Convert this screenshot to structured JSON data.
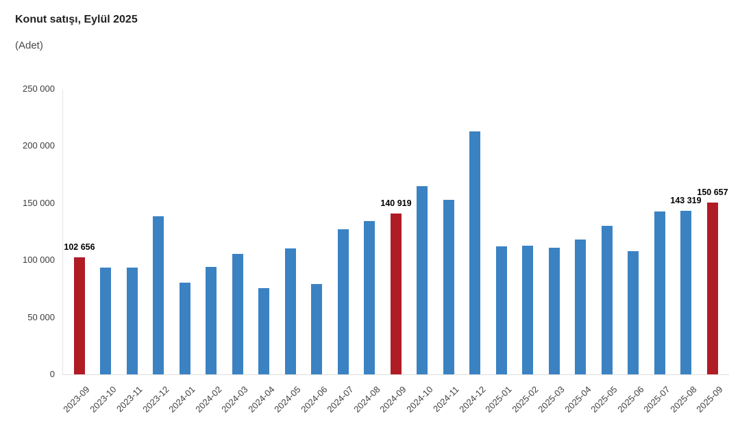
{
  "header": {
    "title": "Konut satışı, Eylül 2025",
    "subtitle": "(Adet)"
  },
  "colors": {
    "bar_default": "#3b82c3",
    "bar_highlight": "#b01c23",
    "axis_line": "#e0e0e0",
    "tick_text": "#3f3f3f",
    "title_text": "#222222",
    "data_label_text": "#000000"
  },
  "chart_data": {
    "type": "bar",
    "title": "Konut satışı, Eylül 2025",
    "subtitle": "(Adet)",
    "xlabel": "",
    "ylabel": "",
    "ylim": [
      0,
      250000
    ],
    "ytick_interval": 50000,
    "grid": false,
    "legend_position": "none",
    "yticks": [
      {
        "value": 0,
        "label": "0"
      },
      {
        "value": 50000,
        "label": "50 000"
      },
      {
        "value": 100000,
        "label": "100 000"
      },
      {
        "value": 150000,
        "label": "150 000"
      },
      {
        "value": 200000,
        "label": "200 000"
      },
      {
        "value": 250000,
        "label": "250 000"
      }
    ],
    "categories": [
      "2023-09",
      "2023-10",
      "2023-11",
      "2023-12",
      "2024-01",
      "2024-02",
      "2024-03",
      "2024-04",
      "2024-05",
      "2024-06",
      "2024-07",
      "2024-08",
      "2024-09",
      "2024-10",
      "2024-11",
      "2024-12",
      "2025-01",
      "2025-02",
      "2025-03",
      "2025-04",
      "2025-05",
      "2025-06",
      "2025-07",
      "2025-08",
      "2025-09"
    ],
    "values": [
      102656,
      93761,
      93514,
      138577,
      80308,
      93902,
      105476,
      75569,
      110588,
      79313,
      127088,
      134155,
      140919,
      165138,
      153014,
      212637,
      112173,
      112818,
      110795,
      118359,
      130025,
      107723,
      142858,
      143319,
      150657
    ],
    "highlighted_categories": [
      "2023-09",
      "2024-09",
      "2025-09"
    ],
    "data_labels": [
      {
        "category": "2023-09",
        "text": "102 656"
      },
      {
        "category": "2024-09",
        "text": "140 919"
      },
      {
        "category": "2025-08",
        "text": "143 319"
      },
      {
        "category": "2025-09",
        "text": "150 657"
      }
    ]
  }
}
